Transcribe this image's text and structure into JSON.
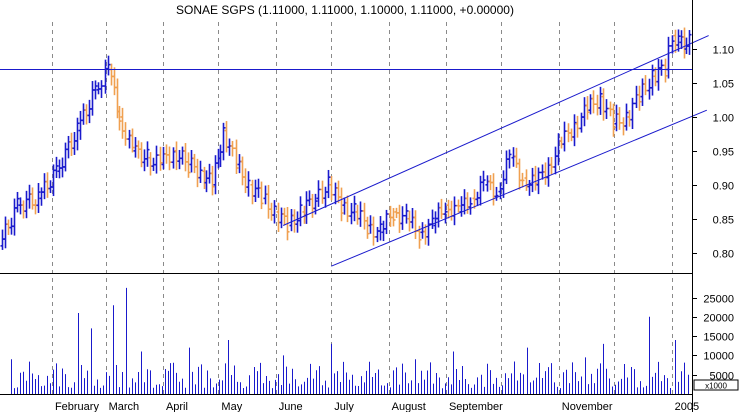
{
  "chart_data": {
    "type": "ohlc",
    "title": "SONAE SGPS (1.11000, 1.11000, 1.10000, 1.11000, +0.00000)",
    "colors": {
      "up": "#1a1acc",
      "down": "#f0a050",
      "volume": "#1a1acc",
      "trendline": "#1a1acc",
      "grid": "#8a8a8a",
      "frame": "#000000"
    },
    "x_axis": {
      "labels": [
        "February",
        "March",
        "April",
        "May",
        "June",
        "July",
        "August",
        "September",
        "November",
        "2005"
      ],
      "label_positions": [
        "2004-02-01",
        "2004-03-01",
        "2004-04-01",
        "2004-05-01",
        "2004-06-01",
        "2004-07-01",
        "2004-08-01",
        "2004-09-01",
        "2004-11-01",
        "2005-01-01"
      ],
      "range": [
        "2004-01-05",
        "2005-01-12"
      ],
      "grid_dates": [
        "2004-02-01",
        "2004-03-01",
        "2004-04-01",
        "2004-05-01",
        "2004-06-01",
        "2004-07-01",
        "2004-08-01",
        "2004-09-01",
        "2004-10-01",
        "2004-11-01",
        "2004-12-01",
        "2005-01-01"
      ]
    },
    "price_axis": {
      "ticks": [
        0.8,
        0.85,
        0.9,
        0.95,
        1.0,
        1.05,
        1.1
      ],
      "tick_labels": [
        "0.80",
        "0.85",
        "0.90",
        "0.95",
        "1.00",
        "1.05",
        "1.10"
      ],
      "ylim": [
        0.77,
        1.14
      ],
      "grid": "vertical-dashed"
    },
    "volume_axis": {
      "ticks": [
        5000,
        10000,
        15000,
        20000,
        25000
      ],
      "tick_labels": [
        "5000",
        "10000",
        "15000",
        "20000",
        "25000"
      ],
      "unit_label": "x1000",
      "ylim": [
        0,
        28500
      ]
    },
    "price_series": [
      {
        "date": "2004-01-05",
        "close": 0.81
      },
      {
        "date": "2004-01-15",
        "close": 0.87
      },
      {
        "date": "2004-01-26",
        "close": 0.88
      },
      {
        "date": "2004-02-05",
        "close": 0.92
      },
      {
        "date": "2004-02-16",
        "close": 0.98
      },
      {
        "date": "2004-02-26",
        "close": 1.04
      },
      {
        "date": "2004-03-04",
        "close": 1.07
      },
      {
        "date": "2004-03-10",
        "close": 1.0
      },
      {
        "date": "2004-03-17",
        "close": 0.95
      },
      {
        "date": "2004-03-25",
        "close": 0.94
      },
      {
        "date": "2004-04-01",
        "close": 0.93
      },
      {
        "date": "2004-04-08",
        "close": 0.95
      },
      {
        "date": "2004-04-16",
        "close": 0.93
      },
      {
        "date": "2004-04-23",
        "close": 0.92
      },
      {
        "date": "2004-04-29",
        "close": 0.9
      },
      {
        "date": "2004-05-05",
        "close": 0.98
      },
      {
        "date": "2004-05-12",
        "close": 0.93
      },
      {
        "date": "2004-05-19",
        "close": 0.9
      },
      {
        "date": "2004-05-26",
        "close": 0.88
      },
      {
        "date": "2004-06-02",
        "close": 0.86
      },
      {
        "date": "2004-06-09",
        "close": 0.84
      },
      {
        "date": "2004-06-16",
        "close": 0.86
      },
      {
        "date": "2004-06-24",
        "close": 0.88
      },
      {
        "date": "2004-07-01",
        "close": 0.9
      },
      {
        "date": "2004-07-08",
        "close": 0.87
      },
      {
        "date": "2004-07-15",
        "close": 0.86
      },
      {
        "date": "2004-07-22",
        "close": 0.84
      },
      {
        "date": "2004-07-29",
        "close": 0.83
      },
      {
        "date": "2004-08-05",
        "close": 0.86
      },
      {
        "date": "2004-08-12",
        "close": 0.85
      },
      {
        "date": "2004-08-19",
        "close": 0.83
      },
      {
        "date": "2004-08-26",
        "close": 0.84
      },
      {
        "date": "2004-09-02",
        "close": 0.87
      },
      {
        "date": "2004-09-09",
        "close": 0.86
      },
      {
        "date": "2004-09-16",
        "close": 0.88
      },
      {
        "date": "2004-09-23",
        "close": 0.9
      },
      {
        "date": "2004-09-30",
        "close": 0.89
      },
      {
        "date": "2004-10-07",
        "close": 0.94
      },
      {
        "date": "2004-10-14",
        "close": 0.91
      },
      {
        "date": "2004-10-21",
        "close": 0.9
      },
      {
        "date": "2004-10-28",
        "close": 0.93
      },
      {
        "date": "2004-11-04",
        "close": 0.96
      },
      {
        "date": "2004-11-11",
        "close": 0.99
      },
      {
        "date": "2004-11-18",
        "close": 1.01
      },
      {
        "date": "2004-11-25",
        "close": 1.03
      },
      {
        "date": "2004-12-02",
        "close": 0.99
      },
      {
        "date": "2004-12-09",
        "close": 1.0
      },
      {
        "date": "2004-12-16",
        "close": 1.03
      },
      {
        "date": "2004-12-23",
        "close": 1.06
      },
      {
        "date": "2004-12-30",
        "close": 1.07
      },
      {
        "date": "2005-01-03",
        "close": 1.12
      },
      {
        "date": "2005-01-06",
        "close": 1.11
      },
      {
        "date": "2005-01-12",
        "close": 1.11
      }
    ],
    "volume_series": [
      {
        "date": "2004-01-10",
        "value": 9000
      },
      {
        "date": "2004-02-15",
        "value": 21000
      },
      {
        "date": "2004-02-22",
        "value": 17000
      },
      {
        "date": "2004-03-05",
        "value": 23000
      },
      {
        "date": "2004-03-12",
        "value": 27500
      },
      {
        "date": "2004-03-20",
        "value": 11000
      },
      {
        "date": "2004-04-05",
        "value": 8000
      },
      {
        "date": "2004-04-15",
        "value": 12000
      },
      {
        "date": "2004-05-06",
        "value": 14000
      },
      {
        "date": "2004-05-20",
        "value": 7000
      },
      {
        "date": "2004-06-05",
        "value": 10000
      },
      {
        "date": "2004-07-01",
        "value": 13000
      },
      {
        "date": "2004-07-20",
        "value": 6000
      },
      {
        "date": "2004-08-15",
        "value": 9000
      },
      {
        "date": "2004-09-05",
        "value": 11000
      },
      {
        "date": "2004-09-20",
        "value": 5000
      },
      {
        "date": "2004-10-15",
        "value": 12000
      },
      {
        "date": "2004-10-28",
        "value": 8000
      },
      {
        "date": "2004-11-15",
        "value": 9500
      },
      {
        "date": "2004-11-25",
        "value": 13000
      },
      {
        "date": "2004-12-10",
        "value": 7000
      },
      {
        "date": "2004-12-20",
        "value": 20000
      },
      {
        "date": "2005-01-03",
        "value": 14000
      },
      {
        "date": "2005-01-10",
        "value": 5000
      }
    ],
    "horizontal_lines": [
      {
        "price": 1.07
      }
    ],
    "trendlines": [
      {
        "from": {
          "date": "2004-06-05",
          "price": 0.84
        },
        "to": {
          "date": "2005-01-21",
          "price": 1.12
        }
      },
      {
        "from": {
          "date": "2004-07-01",
          "price": 0.78
        },
        "to": {
          "date": "2005-01-20",
          "price": 1.01
        }
      }
    ]
  }
}
